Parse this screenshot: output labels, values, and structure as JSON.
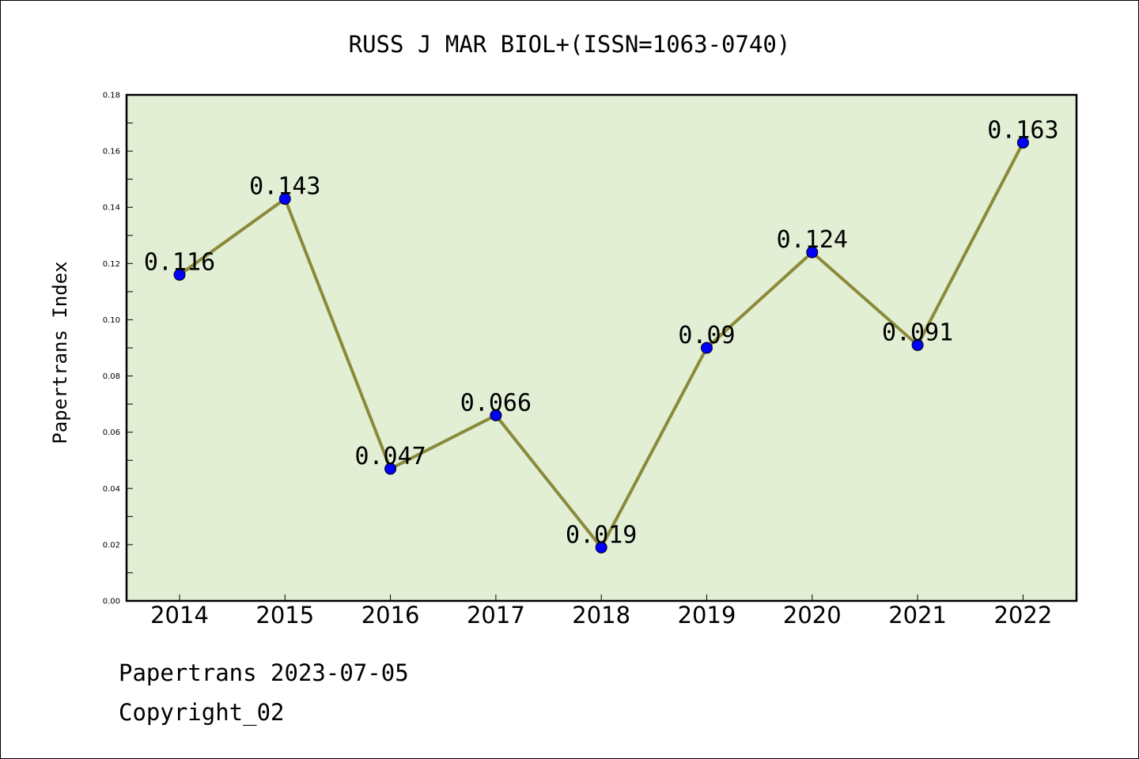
{
  "chart_data": {
    "type": "line",
    "title": "RUSS J MAR BIOL+(ISSN=1063-0740)",
    "xlabel": "",
    "ylabel": "Papertrans Index",
    "categories": [
      "2014",
      "2015",
      "2016",
      "2017",
      "2018",
      "2019",
      "2020",
      "2021",
      "2022"
    ],
    "series": [
      {
        "values": [
          0.116,
          0.143,
          0.047,
          0.066,
          0.019,
          0.09,
          0.124,
          0.091,
          0.163
        ],
        "data_labels": [
          "0.116",
          "0.143",
          "0.047",
          "0.066",
          "0.019",
          "0.09",
          "0.124",
          "0.091",
          "0.163"
        ]
      }
    ],
    "ylim": [
      0,
      0.18
    ],
    "yticks": [
      "0.00",
      "0.02",
      "0.04",
      "0.06",
      "0.08",
      "0.10",
      "0.12",
      "0.14",
      "0.16",
      "0.18"
    ],
    "grid": false,
    "legend": "none",
    "colors": {
      "plot_background": "#e2efd5",
      "line": "#8b8a3a",
      "marker": "#0000ff"
    }
  },
  "footer": {
    "date_line": "Papertrans 2023-07-05",
    "copyright": "Copyright_02"
  }
}
